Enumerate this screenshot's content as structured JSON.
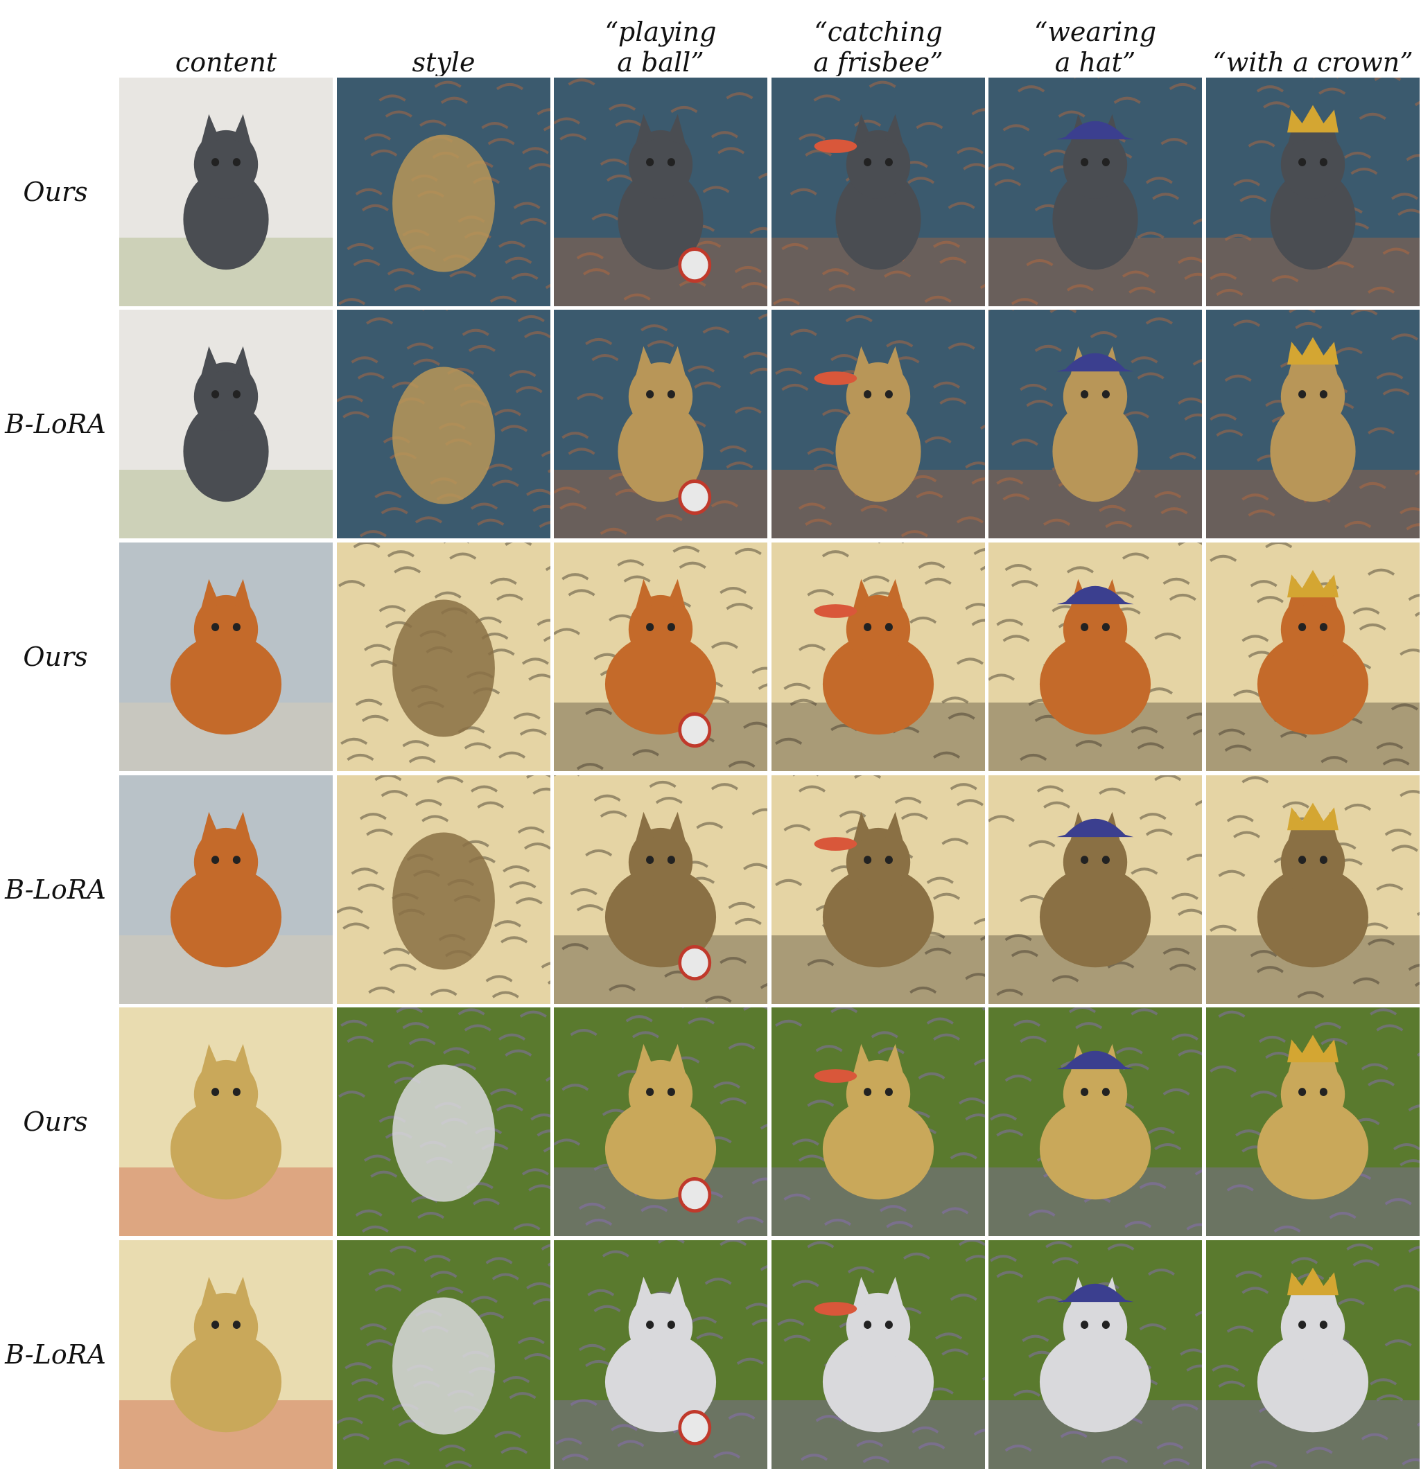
{
  "figure": {
    "columns": [
      {
        "line1": "content",
        "line2": ""
      },
      {
        "line1": "style",
        "line2": ""
      },
      {
        "line1": "“playing",
        "line2": "a ball”"
      },
      {
        "line1": "“catching",
        "line2": "a frisbee”"
      },
      {
        "line1": "“wearing",
        "line2": "a hat”"
      },
      {
        "line1": "“with a crown”",
        "line2": ""
      }
    ],
    "rows": [
      {
        "label": "Ours",
        "scene": "cat",
        "style": "vangogh-portrait",
        "method": "ours"
      },
      {
        "label": "B-LoRA",
        "scene": "cat",
        "style": "vangogh-portrait",
        "method": "blora"
      },
      {
        "label": "Ours",
        "scene": "chow",
        "style": "sketch",
        "method": "ours"
      },
      {
        "label": "B-LoRA",
        "scene": "chow",
        "style": "sketch",
        "method": "blora"
      },
      {
        "label": "Ours",
        "scene": "painting",
        "style": "border-collie",
        "method": "ours"
      },
      {
        "label": "B-LoRA",
        "scene": "painting",
        "style": "border-collie",
        "method": "blora"
      }
    ],
    "palettes": {
      "cat": {
        "bg": "#e8e6e2",
        "subject": "#4a4d52",
        "accent": "#9aa86b"
      },
      "chow": {
        "bg": "#b9c2c8",
        "subject": "#c46a2a",
        "accent": "#e6d2b0"
      },
      "painting": {
        "bg": "#e9dcb0",
        "subject": "#c9a85a",
        "accent": "#c8432c"
      },
      "vangogh-portrait": {
        "bg": "#3b5a6e",
        "subject": "#b89658",
        "accent": "#c06a3a"
      },
      "sketch": {
        "bg": "#e5d4a4",
        "subject": "#8a7044",
        "accent": "#3a3224"
      },
      "border-collie": {
        "bg": "#5a7a2e",
        "subject": "#d9d9dc",
        "accent": "#8c6bc4"
      }
    }
  }
}
